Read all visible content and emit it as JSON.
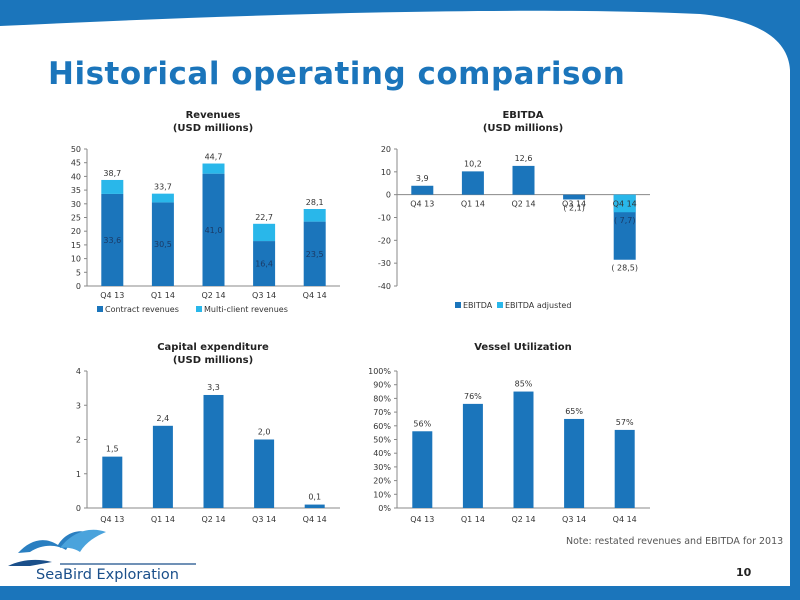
{
  "page": {
    "title": "Historical operating comparison",
    "note": "Note:  restated revenues and EBITDA for 2013",
    "page_number": "10",
    "logo_text": "SeaBird Exploration"
  },
  "colors": {
    "brand_blue": "#1b75bb",
    "dark_bar": "#1b75bb",
    "light_bar": "#29b7ea"
  },
  "chart_data": [
    {
      "id": "revenues",
      "type": "bar",
      "stacked": true,
      "title": "Revenues",
      "subtitle": "(USD millions)",
      "categories": [
        "Q4  13",
        "Q1 14",
        "Q2 14",
        "Q3 14",
        "Q4 14"
      ],
      "series": [
        {
          "name": "Contract revenues",
          "values": [
            33.6,
            30.5,
            41.0,
            16.4,
            23.5
          ],
          "labels": [
            "33,6",
            "30,5",
            "41,0",
            "16,4",
            "23,5"
          ]
        },
        {
          "name": "Multi-client revenues",
          "values": [
            5.1,
            3.2,
            3.7,
            6.3,
            4.6
          ]
        }
      ],
      "totals": [
        "38,7",
        "33,7",
        "44,7",
        "22,7",
        "28,1"
      ],
      "ylim": [
        0,
        50
      ],
      "yticks": [
        "0",
        "5",
        "10",
        "15",
        "20",
        "25",
        "30",
        "35",
        "40",
        "45",
        "50"
      ],
      "legend_position": "bottom"
    },
    {
      "id": "ebitda",
      "type": "bar",
      "title": "EBITDA",
      "subtitle": "(USD millions)",
      "categories": [
        "Q4 13",
        "Q1 14",
        "Q2 14",
        "Q3 14",
        "Q4 14"
      ],
      "series": [
        {
          "name": "EBITDA",
          "values": [
            3.9,
            10.2,
            12.6,
            -2.1,
            -28.5
          ],
          "labels": [
            "3,9",
            "10,2",
            "12,6",
            "( 2,1)",
            "( 28,5)"
          ]
        },
        {
          "name": "EBITDA adjusted",
          "values": [
            null,
            null,
            null,
            null,
            -7.7
          ],
          "labels": [
            "",
            "",
            "",
            "",
            "( 7,7)"
          ]
        }
      ],
      "ylim": [
        -40,
        20
      ],
      "yticks": [
        "-40",
        "-30",
        "-20",
        "-10",
        "0",
        "10",
        "20"
      ],
      "legend_position": "bottom"
    },
    {
      "id": "capex",
      "type": "bar",
      "title": "Capital expenditure",
      "subtitle": "(USD millions)",
      "categories": [
        "Q4  13",
        "Q1 14",
        "Q2 14",
        "Q3 14",
        "Q4 14"
      ],
      "series": [
        {
          "values": [
            1.5,
            2.4,
            3.3,
            2.0,
            0.1
          ],
          "labels": [
            "1,5",
            "2,4",
            "3,3",
            "2,0",
            "0,1"
          ]
        }
      ],
      "ylim": [
        0,
        4
      ],
      "yticks": [
        "0",
        "1",
        "2",
        "3",
        "4"
      ]
    },
    {
      "id": "utilization",
      "type": "bar",
      "title": "Vessel Utilization",
      "subtitle": "",
      "categories": [
        "Q4 13",
        "Q1 14",
        "Q2 14",
        "Q3 14",
        "Q4 14"
      ],
      "series": [
        {
          "values": [
            56,
            76,
            85,
            65,
            57
          ],
          "labels": [
            "56%",
            "76%",
            "85%",
            "65%",
            "57%"
          ]
        }
      ],
      "ylim": [
        0,
        100
      ],
      "yticks": [
        "0%",
        "10%",
        "20%",
        "30%",
        "40%",
        "50%",
        "60%",
        "70%",
        "80%",
        "90%",
        "100%"
      ]
    }
  ]
}
